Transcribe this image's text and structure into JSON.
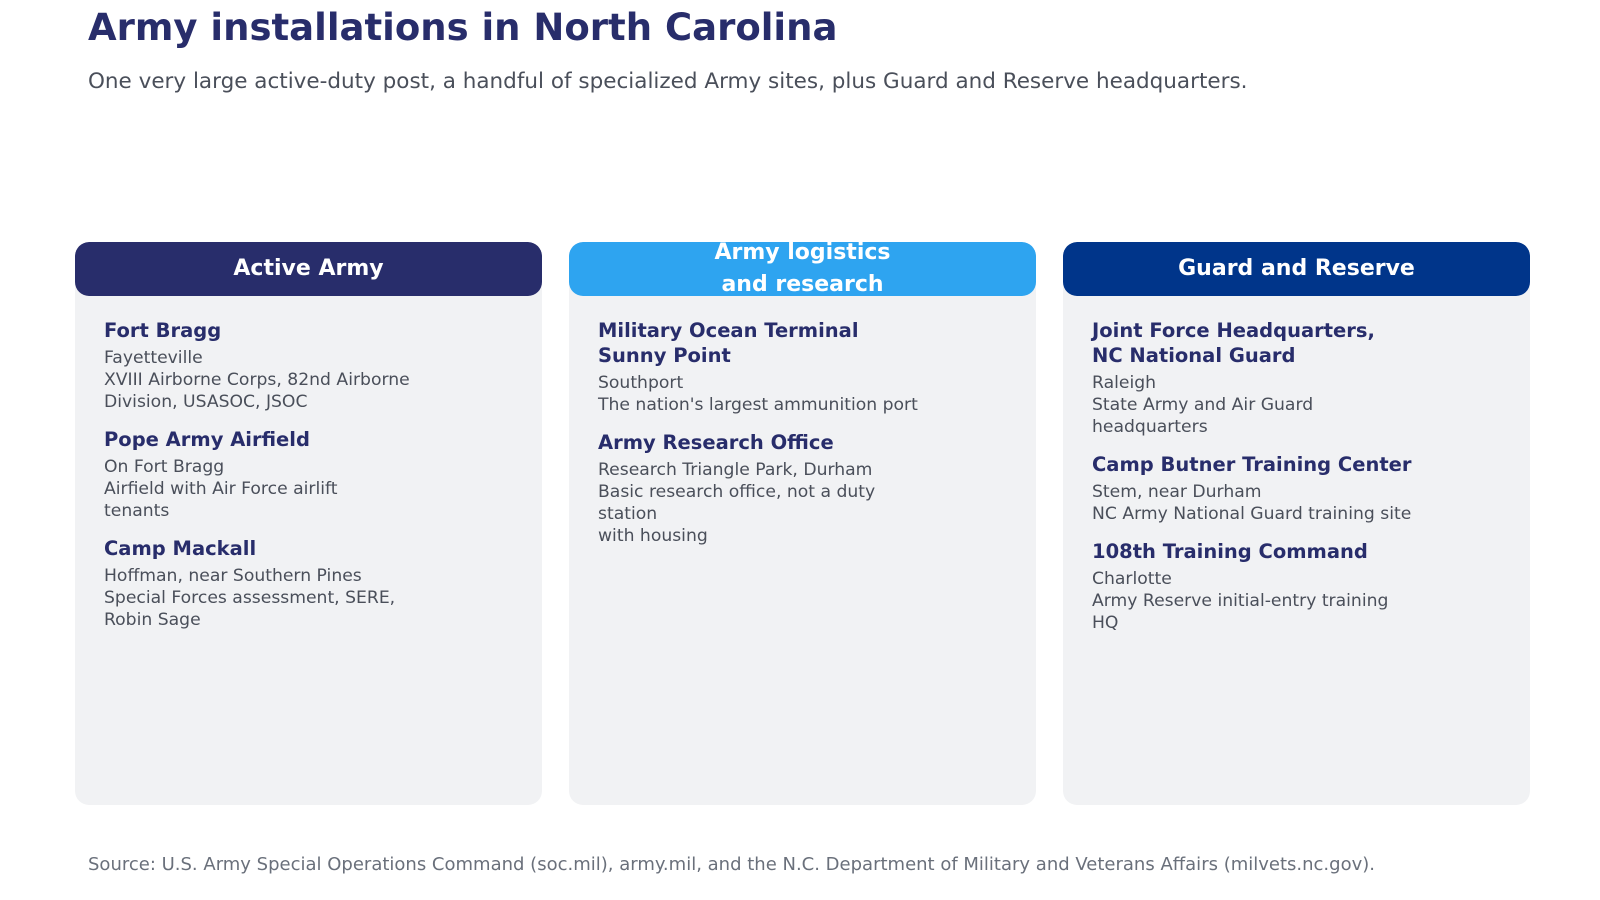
{
  "title": "Army installations in North Carolina",
  "subtitle": "One very large active-duty post, a handful of specialized Army sites, plus Guard and Reserve headquarters.",
  "source": "Source: U.S. Army Special Operations Command (soc.mil), army.mil, and the N.C. Department of Military and Veterans Affairs (milvets.nc.gov).",
  "colors": {
    "active_army_header": "#282d6b",
    "logistics_header": "#2ea4f0",
    "guard_reserve_header": "#00358a",
    "card_background": "#f1f2f4",
    "heading_text": "#282d6b",
    "body_text": "#4a4f5a"
  },
  "columns": [
    {
      "header": [
        "Active Army"
      ],
      "entries": [
        {
          "name": "Fort Bragg",
          "location": "Fayetteville",
          "description": "XVIII Airborne Corps, 82nd Airborne\nDivision, USASOC, JSOC"
        },
        {
          "name": "Pope Army Airfield",
          "location": "On Fort Bragg",
          "description": "Airfield with Air Force airlift\ntenants"
        },
        {
          "name": "Camp Mackall",
          "location": "Hoffman, near Southern Pines",
          "description": "Special Forces assessment, SERE,\nRobin Sage"
        }
      ]
    },
    {
      "header": [
        "Army logistics",
        "and research"
      ],
      "entries": [
        {
          "name": "Military Ocean Terminal\nSunny Point",
          "location": "Southport",
          "description": "The nation's largest ammunition port"
        },
        {
          "name": "Army Research Office",
          "location": "Research Triangle Park, Durham",
          "description": "Basic research office, not a duty\nstation\nwith housing"
        }
      ]
    },
    {
      "header": [
        "Guard and Reserve"
      ],
      "entries": [
        {
          "name": "Joint Force Headquarters,\nNC National Guard",
          "location": "Raleigh",
          "description": "State Army and Air Guard\nheadquarters"
        },
        {
          "name": "Camp Butner Training Center",
          "location": "Stem, near Durham",
          "description": "NC Army National Guard training site"
        },
        {
          "name": "108th Training Command",
          "location": "Charlotte",
          "description": "Army Reserve initial-entry training\nHQ"
        }
      ]
    }
  ]
}
